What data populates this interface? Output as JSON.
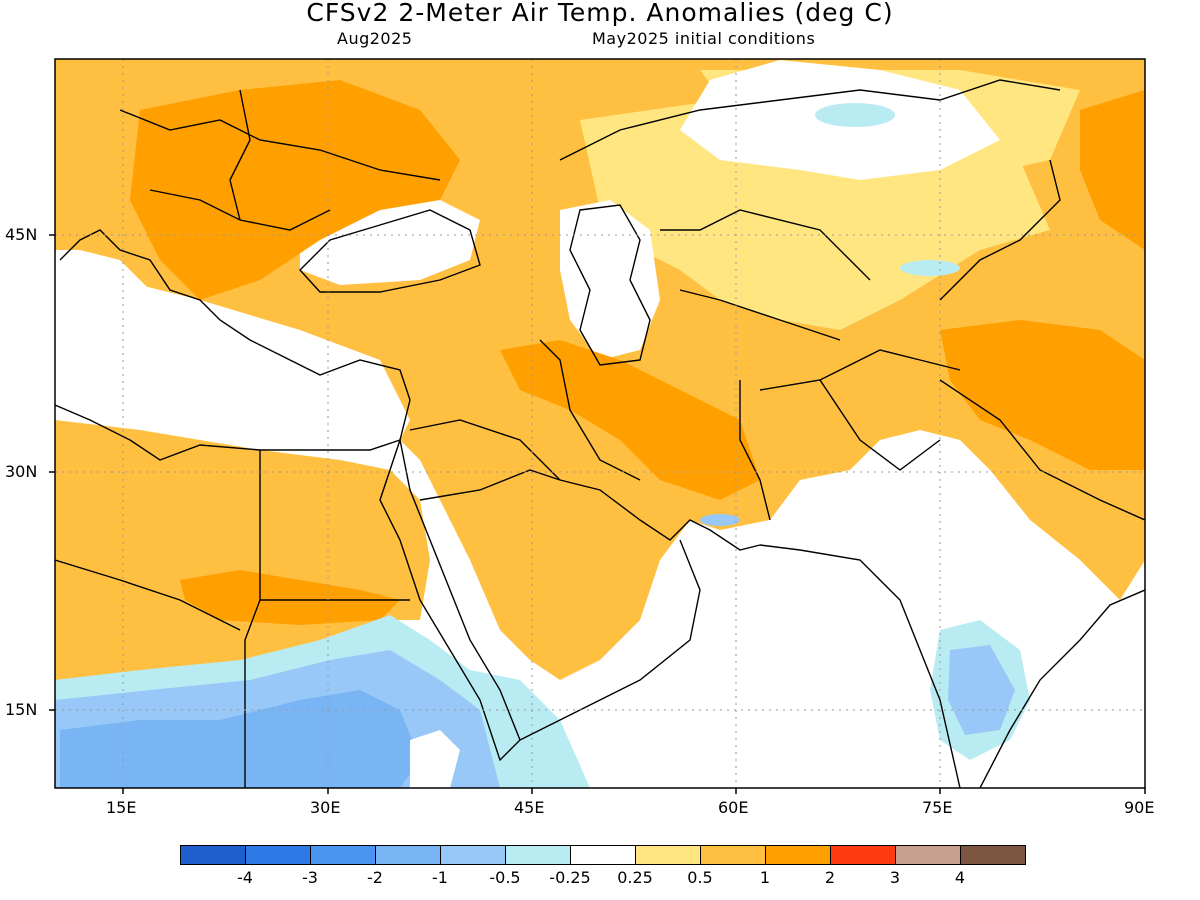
{
  "title": "CFSv2 2-Meter Air Temp. Anomalies (deg C)",
  "valid_month": "Aug2025",
  "initial_conditions": "May2025 initial conditions",
  "lat_labels": [
    "45N",
    "30N",
    "15N"
  ],
  "lon_labels": [
    "15E",
    "30E",
    "45E",
    "60E",
    "75E",
    "90E"
  ],
  "colorbar": {
    "colors": [
      "#1f5fcc",
      "#2e78e6",
      "#4a95f0",
      "#79b4f5",
      "#98c8f8",
      "#b8ecf2",
      "#ffffff",
      "#ffe680",
      "#ffbf40",
      "#ff9f00",
      "#ff3b10",
      "#c8a090",
      "#7b5540"
    ],
    "labels": [
      "-4",
      "-3",
      "-2",
      "-1",
      "-0.5",
      "-0.25",
      "0.25",
      "0.5",
      "1",
      "2",
      "3",
      "4"
    ]
  },
  "map_extent": {
    "lon": [
      10,
      90
    ],
    "lat": [
      10,
      55
    ]
  },
  "anomaly_fields": [
    {
      "level": "0.5 to 1",
      "color": "#ffbf40",
      "region": "Eastern Europe, Turkey, Middle East, Arabian Peninsula, Central Asia, Himalaya/Tibet"
    },
    {
      "level": "1 to 2",
      "color": "#ff9f00",
      "region": "Balkans, Ukraine, Iraq, Iran, Pakistan, Sahara, Tibet"
    },
    {
      "level": "0.25 to 0.5",
      "color": "#ffe680",
      "region": "Kazakhstan, Turkmenistan, Uzbekistan fringes"
    },
    {
      "level": "-0.25 to -1",
      "color": "#98c8f8",
      "region": "Sahel, Ethiopian Highlands, southern India"
    }
  ]
}
